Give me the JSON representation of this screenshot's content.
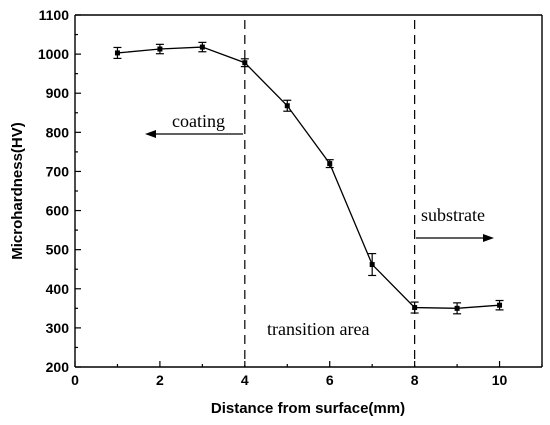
{
  "chart_data": {
    "type": "line",
    "xlabel": "Distance from surface(mm)",
    "ylabel": "Microhardness(HV)",
    "xlim": [
      0,
      11
    ],
    "ylim": [
      200,
      1100
    ],
    "xticks": [
      0,
      2,
      4,
      6,
      8,
      10
    ],
    "yticks": [
      200,
      300,
      400,
      500,
      600,
      700,
      800,
      900,
      1000,
      1100
    ],
    "grid": false,
    "series": [
      {
        "x": [
          1,
          2,
          3,
          4,
          5,
          6,
          7,
          8,
          9,
          10
        ],
        "y": [
          1003,
          1013,
          1018,
          978,
          868,
          720,
          462,
          352,
          350,
          358
        ],
        "error": [
          14,
          12,
          12,
          10,
          14,
          10,
          28,
          14,
          14,
          12
        ],
        "color": "#000000",
        "marker": "square"
      }
    ],
    "dividers": [
      4,
      8
    ],
    "annotations": [
      {
        "text": "coating",
        "arrow": "left"
      },
      {
        "text": "transition area"
      },
      {
        "text": "substrate",
        "arrow": "right"
      }
    ]
  }
}
